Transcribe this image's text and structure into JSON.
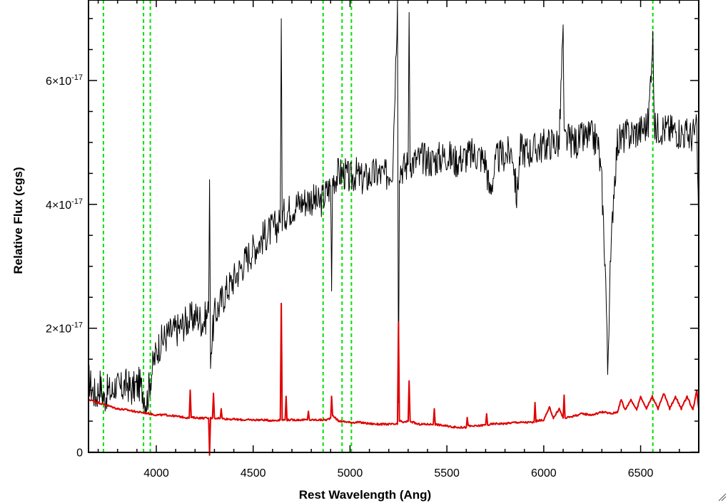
{
  "chart_data": {
    "type": "line",
    "xlabel": "Rest Wavelength (Ang)",
    "ylabel": "Relative Flux (cgs)",
    "xlim": [
      3650,
      6800
    ],
    "ylim": [
      -5e-20,
      7.3e-17
    ],
    "x_ticks": [
      {
        "value": 4000,
        "label": "4000"
      },
      {
        "value": 4500,
        "label": "4500"
      },
      {
        "value": 5000,
        "label": "5000"
      },
      {
        "value": 5500,
        "label": "5500"
      },
      {
        "value": 6000,
        "label": "6000"
      },
      {
        "value": 6500,
        "label": "6500"
      }
    ],
    "y_ticks": [
      {
        "value": 0,
        "mantissa": "0",
        "exponent": ""
      },
      {
        "value": 2e-17,
        "mantissa": "2×10",
        "exponent": "-17"
      },
      {
        "value": 4e-17,
        "mantissa": "4×10",
        "exponent": "-17"
      },
      {
        "value": 6e-17,
        "mantissa": "6×10",
        "exponent": "-17"
      }
    ],
    "vlines": [
      3727,
      3934,
      3969,
      4861,
      4959,
      5007,
      6563
    ],
    "grid": false,
    "series": [
      {
        "color": "#000000",
        "x": [
          3650,
          3670,
          3690,
          3710,
          3730,
          3750,
          3770,
          3790,
          3810,
          3830,
          3850,
          3870,
          3890,
          3910,
          3930,
          3950,
          3970,
          3990,
          4010,
          4030,
          4060,
          4090,
          4120,
          4150,
          4180,
          4210,
          4240,
          4270,
          4275,
          4280,
          4300,
          4330,
          4360,
          4400,
          4440,
          4480,
          4520,
          4560,
          4600,
          4640,
          4645,
          4650,
          4680,
          4720,
          4760,
          4800,
          4840,
          4880,
          4900,
          4905,
          4910,
          4940,
          4970,
          5000,
          5030,
          5060,
          5100,
          5140,
          5180,
          5220,
          5245,
          5250,
          5255,
          5280,
          5300,
          5305,
          5310,
          5340,
          5380,
          5420,
          5460,
          5500,
          5540,
          5580,
          5620,
          5660,
          5700,
          5720,
          5760,
          5800,
          5840,
          5860,
          5880,
          5920,
          5960,
          6000,
          6040,
          6080,
          6100,
          6105,
          6120,
          6160,
          6200,
          6240,
          6280,
          6300,
          6320,
          6330,
          6340,
          6360,
          6380,
          6420,
          6460,
          6500,
          6540,
          6563,
          6570,
          6600,
          6640,
          6680,
          6720,
          6760,
          6790,
          6800
        ],
        "y": [
          1.2e-17,
          1e-17,
          9e-18,
          1.1e-17,
          8.5e-18,
          1e-17,
          9.5e-18,
          1.1e-17,
          1e-17,
          1.05e-17,
          1.1e-17,
          1e-17,
          1.05e-17,
          1.1e-17,
          1e-17,
          8e-18,
          1.2e-17,
          1.5e-17,
          1.7e-17,
          1.8e-17,
          1.9e-17,
          1.95e-17,
          2e-17,
          2.1e-17,
          2.15e-17,
          2.2e-17,
          2.1e-17,
          2.25e-17,
          4.4e-17,
          1.6e-17,
          2.2e-17,
          2.4e-17,
          2.6e-17,
          2.8e-17,
          3e-17,
          3.2e-17,
          3.35e-17,
          3.5e-17,
          3.6e-17,
          3.7e-17,
          7e-17,
          3.8e-17,
          3.9e-17,
          4e-17,
          4.05e-17,
          4.1e-17,
          4e-17,
          4.2e-17,
          4.3e-17,
          2.6e-17,
          4.4e-17,
          4.5e-17,
          4.5e-17,
          4.4e-17,
          4.5e-17,
          4.4e-17,
          4.45e-17,
          4.5e-17,
          4.45e-17,
          4.6e-17,
          7.3e-17,
          8e-18,
          4.6e-17,
          4.6e-17,
          4.65e-17,
          7.1e-17,
          4.7e-17,
          4.7e-17,
          4.75e-17,
          4.7e-17,
          4.75e-17,
          4.8e-17,
          4.7e-17,
          4.75e-17,
          4.8e-17,
          4.8e-17,
          4.7e-17,
          4.2e-17,
          4.75e-17,
          4.8e-17,
          4.85e-17,
          4.1e-17,
          4.9e-17,
          4.85e-17,
          4.9e-17,
          4.95e-17,
          5e-17,
          5e-17,
          6.9e-17,
          5e-17,
          5.05e-17,
          5e-17,
          5.05e-17,
          5.1e-17,
          5e-17,
          4.3e-17,
          2.8e-17,
          1.3e-17,
          2.6e-17,
          4.2e-17,
          5e-17,
          5.1e-17,
          5.15e-17,
          5.2e-17,
          5.3e-17,
          6.8e-17,
          5.2e-17,
          5.25e-17,
          5.2e-17,
          5.2e-17,
          5.15e-17,
          5.1e-17,
          5.2e-17,
          3.5e-17
        ]
      },
      {
        "color": "#e00000",
        "x": [
          3650,
          3700,
          3750,
          3800,
          3850,
          3900,
          3950,
          4000,
          4050,
          4100,
          4150,
          4170,
          4175,
          4180,
          4230,
          4270,
          4275,
          4280,
          4290,
          4295,
          4300,
          4330,
          4335,
          4340,
          4400,
          4450,
          4500,
          4550,
          4600,
          4640,
          4645,
          4650,
          4665,
          4670,
          4675,
          4700,
          4780,
          4785,
          4790,
          4850,
          4880,
          4900,
          4905,
          4910,
          4940,
          4950,
          5000,
          5050,
          5100,
          5150,
          5200,
          5245,
          5250,
          5255,
          5280,
          5300,
          5305,
          5310,
          5350,
          5400,
          5430,
          5435,
          5440,
          5500,
          5550,
          5600,
          5605,
          5610,
          5650,
          5700,
          5705,
          5710,
          5750,
          5800,
          5850,
          5900,
          5950,
          5955,
          5960,
          6000,
          6030,
          6050,
          6080,
          6100,
          6105,
          6110,
          6150,
          6200,
          6250,
          6300,
          6350,
          6380,
          6400,
          6420,
          6450,
          6480,
          6500,
          6530,
          6560,
          6590,
          6620,
          6650,
          6680,
          6710,
          6740,
          6770,
          6790,
          6800
        ],
        "y": [
          8.5e-18,
          8e-18,
          7.5e-18,
          7e-18,
          6.8e-18,
          6.5e-18,
          6.3e-18,
          6e-18,
          6e-18,
          5.8e-18,
          5.6e-18,
          5.5e-18,
          1e-17,
          5.6e-18,
          5.5e-18,
          5.5e-18,
          -5e-19,
          5.5e-18,
          5.5e-18,
          9.5e-18,
          5.5e-18,
          5.5e-18,
          7e-18,
          5.4e-18,
          5.3e-18,
          5.2e-18,
          5.2e-18,
          5.2e-18,
          5.1e-18,
          5.2e-18,
          2.4e-17,
          5.2e-18,
          5.2e-18,
          9e-18,
          5.2e-18,
          5.2e-18,
          5.2e-18,
          6.6e-18,
          5.2e-18,
          5.2e-18,
          5.2e-18,
          5.5e-18,
          9e-18,
          6e-18,
          5e-18,
          5e-18,
          4.8e-18,
          4.8e-18,
          4.6e-18,
          4.5e-18,
          4.5e-18,
          4.5e-18,
          2.1e-17,
          5e-18,
          4.8e-18,
          5e-18,
          1.15e-17,
          5e-18,
          4.5e-18,
          4.5e-18,
          4.5e-18,
          7e-18,
          4.5e-18,
          4.2e-18,
          4e-18,
          4e-18,
          5.6e-18,
          4.2e-18,
          4.2e-18,
          4.4e-18,
          6.2e-18,
          4.4e-18,
          4.6e-18,
          4.6e-18,
          4.8e-18,
          4.8e-18,
          4.8e-18,
          8e-18,
          5e-18,
          5.2e-18,
          7.2e-18,
          5.5e-18,
          7e-18,
          5.5e-18,
          9.2e-18,
          5.5e-18,
          5.8e-18,
          6.2e-18,
          6e-18,
          6.5e-18,
          6.2e-18,
          6.5e-18,
          8.5e-18,
          6.8e-18,
          8.5e-18,
          6.8e-18,
          9e-18,
          7e-18,
          9e-18,
          7e-18,
          9.5e-18,
          7e-18,
          9e-18,
          7e-18,
          9e-18,
          6.8e-18,
          1e-17,
          7e-18
        ]
      }
    ]
  }
}
